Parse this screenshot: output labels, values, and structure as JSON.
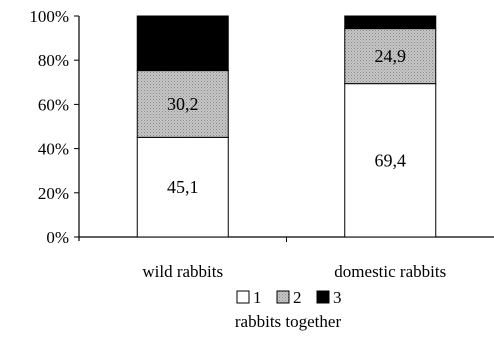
{
  "chart_data": {
    "type": "bar",
    "stacked": true,
    "percent_axis": true,
    "categories": [
      "wild rabbits",
      "domestic rabbits"
    ],
    "series": [
      {
        "name": "1",
        "values": [
          45.1,
          69.4
        ],
        "labels": [
          "45,1",
          "69,4"
        ],
        "color": "#ffffff"
      },
      {
        "name": "2",
        "values": [
          30.2,
          24.9
        ],
        "labels": [
          "30,2",
          "24,9"
        ],
        "color": "#b8b8b8"
      },
      {
        "name": "3",
        "values": [
          24.7,
          5.7
        ],
        "labels": [
          "",
          ""
        ],
        "color": "#000000"
      }
    ],
    "ylim": [
      0,
      100
    ],
    "yticks": [
      "0%",
      "20%",
      "40%",
      "60%",
      "80%",
      "100%"
    ],
    "grid": false,
    "legend_position": "bottom",
    "legend_title": "rabbits together"
  }
}
